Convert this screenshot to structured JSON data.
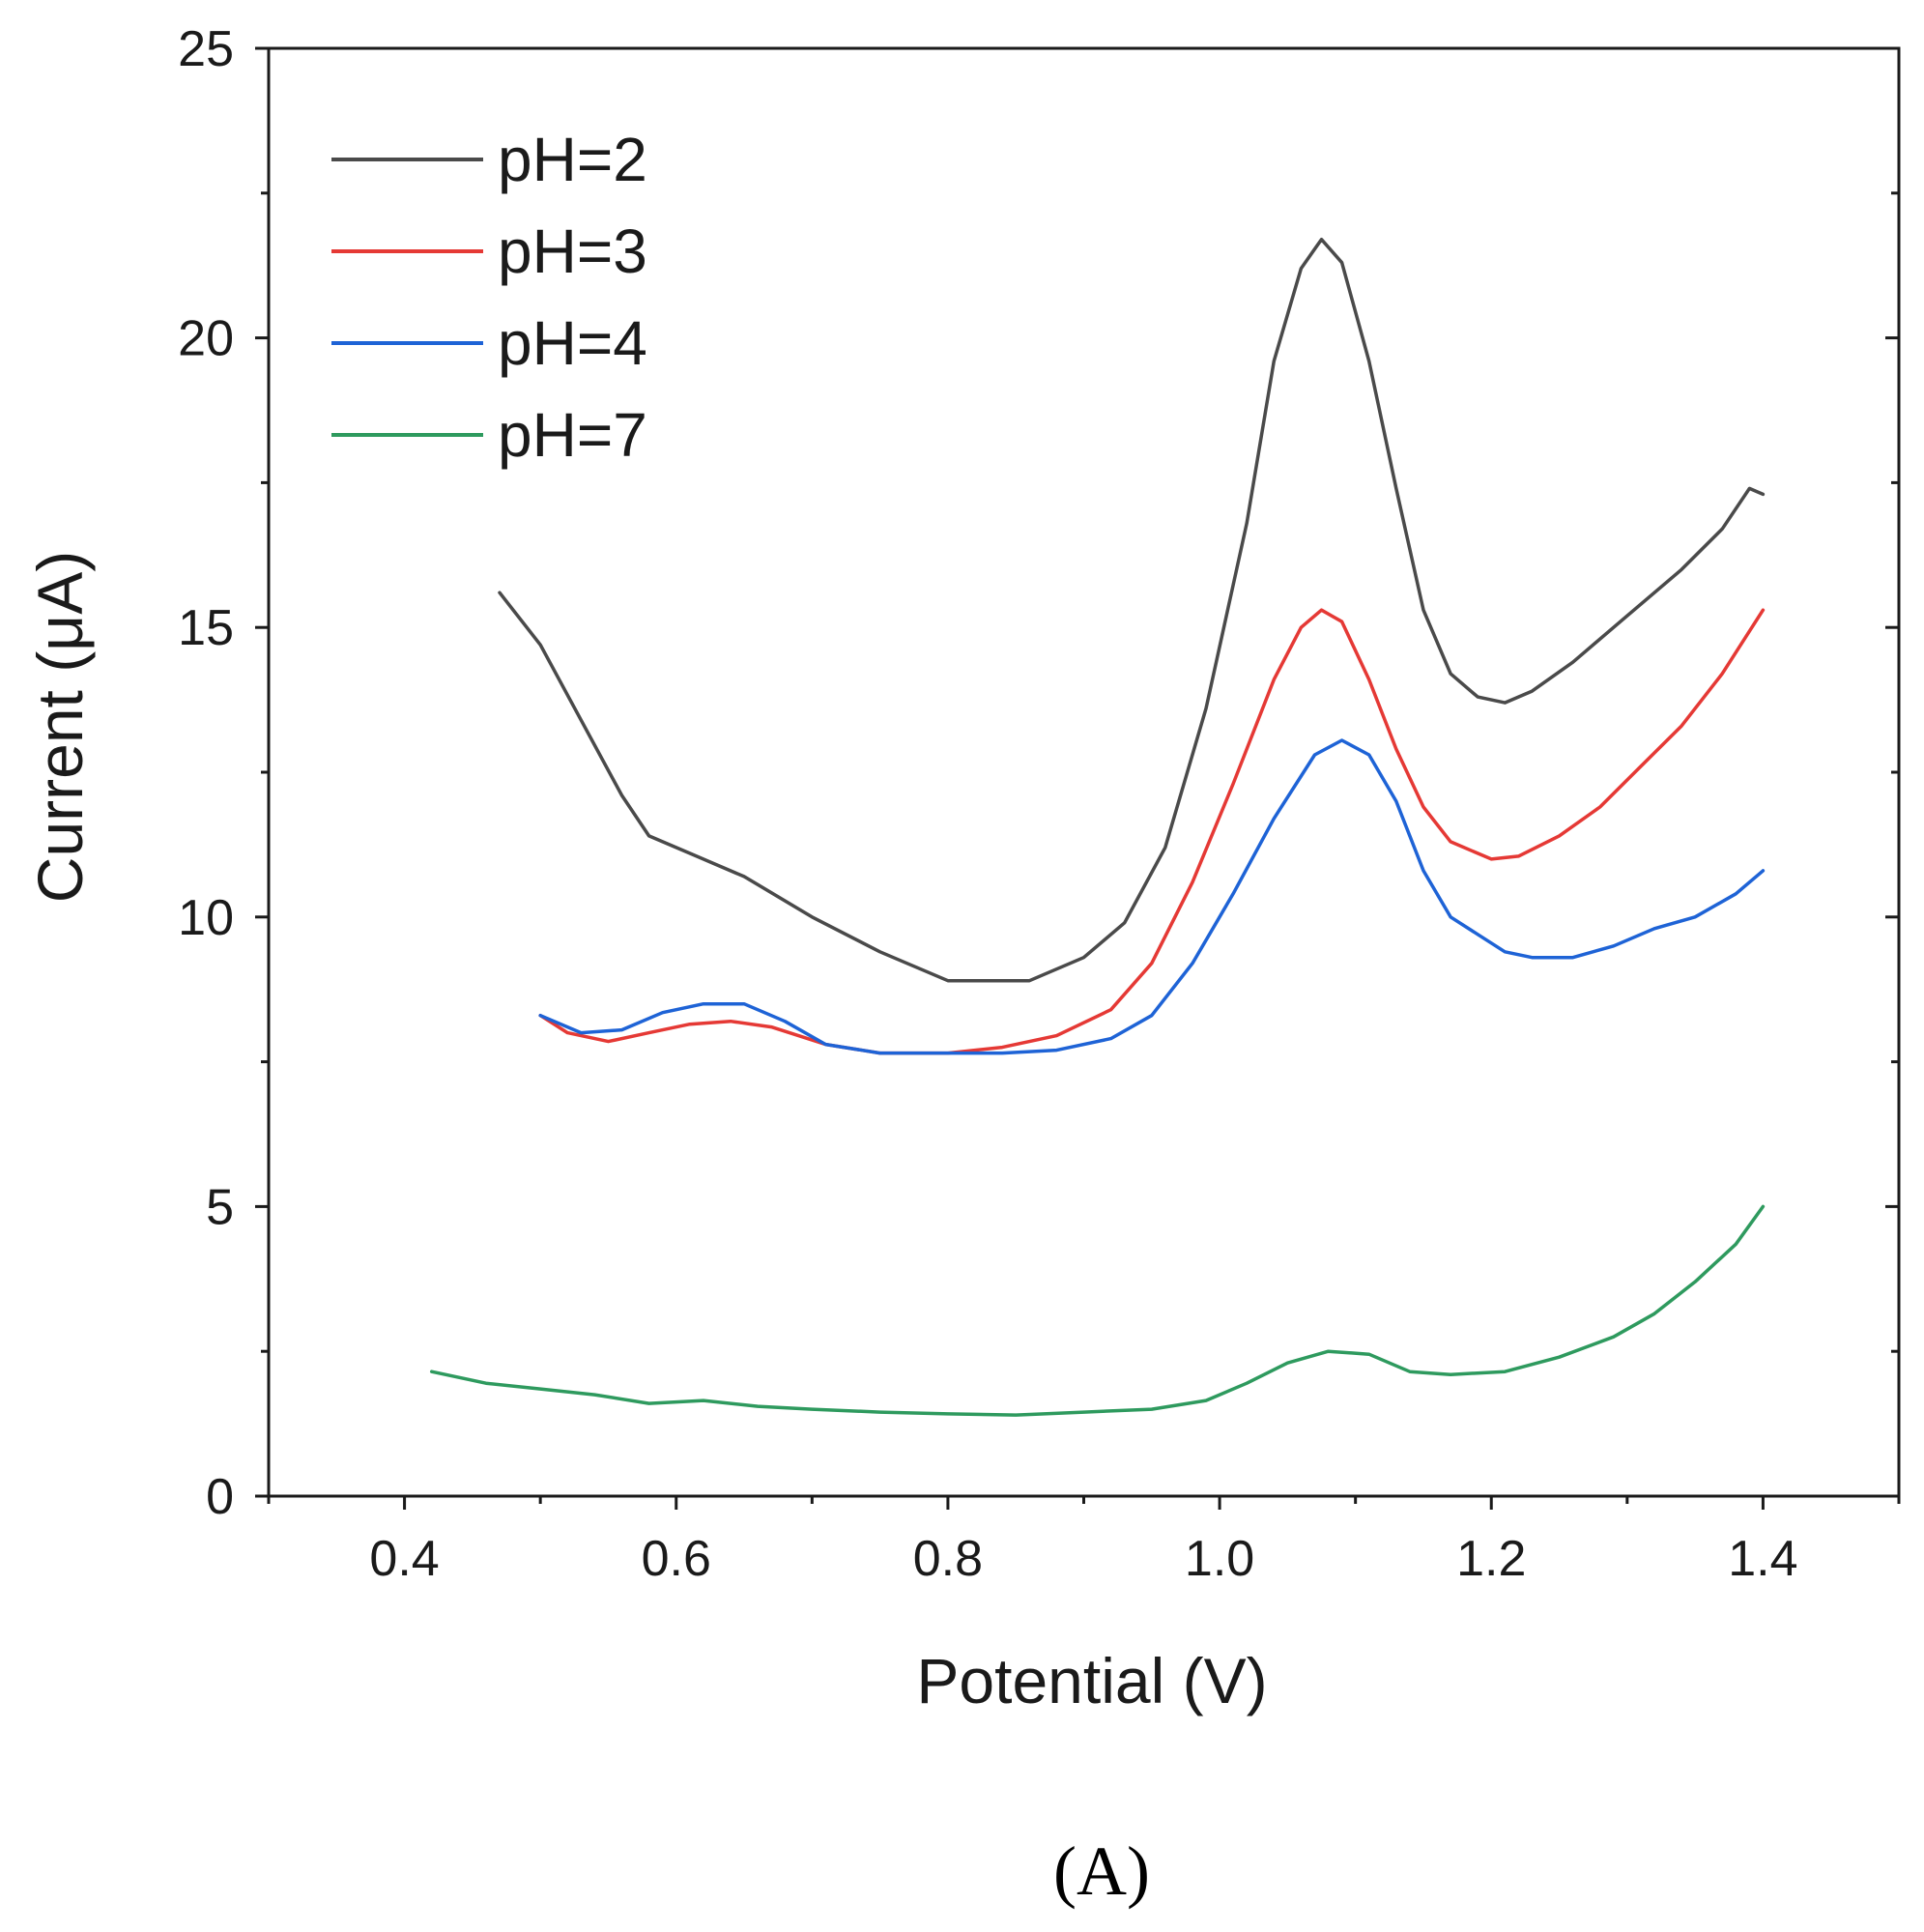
{
  "chart_data": {
    "type": "line",
    "title": "",
    "xlabel": "Potential (V)",
    "ylabel": "Current (μA)",
    "xlim": [
      0.3,
      1.5
    ],
    "ylim": [
      0,
      25
    ],
    "xticks": [
      0.4,
      0.6,
      0.8,
      1.0,
      1.2,
      1.4
    ],
    "xtick_labels": [
      "0.4",
      "0.6",
      "0.8",
      "1.0",
      "1.2",
      "1.4"
    ],
    "yticks": [
      0,
      5,
      10,
      15,
      20,
      25
    ],
    "ytick_labels": [
      "0",
      "5",
      "10",
      "15",
      "20",
      "25"
    ],
    "grid": false,
    "legend_position": "top-left",
    "panel_label": "(A)",
    "series": [
      {
        "name": "pH=2",
        "color": "#4a4a4a",
        "points": [
          [
            0.47,
            15.6
          ],
          [
            0.5,
            14.7
          ],
          [
            0.53,
            13.4
          ],
          [
            0.56,
            12.1
          ],
          [
            0.58,
            11.4
          ],
          [
            0.61,
            11.1
          ],
          [
            0.65,
            10.7
          ],
          [
            0.7,
            10.0
          ],
          [
            0.75,
            9.4
          ],
          [
            0.8,
            8.9
          ],
          [
            0.86,
            8.9
          ],
          [
            0.9,
            9.3
          ],
          [
            0.93,
            9.9
          ],
          [
            0.96,
            11.2
          ],
          [
            0.99,
            13.6
          ],
          [
            1.02,
            16.8
          ],
          [
            1.04,
            19.6
          ],
          [
            1.06,
            21.2
          ],
          [
            1.075,
            21.7
          ],
          [
            1.09,
            21.3
          ],
          [
            1.11,
            19.6
          ],
          [
            1.13,
            17.4
          ],
          [
            1.15,
            15.3
          ],
          [
            1.17,
            14.2
          ],
          [
            1.19,
            13.8
          ],
          [
            1.21,
            13.7
          ],
          [
            1.23,
            13.9
          ],
          [
            1.26,
            14.4
          ],
          [
            1.3,
            15.2
          ],
          [
            1.34,
            16.0
          ],
          [
            1.37,
            16.7
          ],
          [
            1.39,
            17.4
          ],
          [
            1.4,
            17.3
          ]
        ]
      },
      {
        "name": "pH=3",
        "color": "#e53935",
        "points": [
          [
            0.5,
            8.3
          ],
          [
            0.52,
            8.0
          ],
          [
            0.55,
            7.85
          ],
          [
            0.58,
            8.0
          ],
          [
            0.61,
            8.15
          ],
          [
            0.64,
            8.2
          ],
          [
            0.67,
            8.1
          ],
          [
            0.71,
            7.8
          ],
          [
            0.75,
            7.65
          ],
          [
            0.8,
            7.65
          ],
          [
            0.84,
            7.75
          ],
          [
            0.88,
            7.95
          ],
          [
            0.92,
            8.4
          ],
          [
            0.95,
            9.2
          ],
          [
            0.98,
            10.6
          ],
          [
            1.01,
            12.3
          ],
          [
            1.04,
            14.1
          ],
          [
            1.06,
            15.0
          ],
          [
            1.075,
            15.3
          ],
          [
            1.09,
            15.1
          ],
          [
            1.11,
            14.1
          ],
          [
            1.13,
            12.9
          ],
          [
            1.15,
            11.9
          ],
          [
            1.17,
            11.3
          ],
          [
            1.2,
            11.0
          ],
          [
            1.22,
            11.05
          ],
          [
            1.25,
            11.4
          ],
          [
            1.28,
            11.9
          ],
          [
            1.31,
            12.6
          ],
          [
            1.34,
            13.3
          ],
          [
            1.37,
            14.2
          ],
          [
            1.4,
            15.3
          ]
        ]
      },
      {
        "name": "pH=4",
        "color": "#1e63d6",
        "points": [
          [
            0.5,
            8.3
          ],
          [
            0.53,
            8.0
          ],
          [
            0.56,
            8.05
          ],
          [
            0.59,
            8.35
          ],
          [
            0.62,
            8.5
          ],
          [
            0.65,
            8.5
          ],
          [
            0.68,
            8.2
          ],
          [
            0.71,
            7.8
          ],
          [
            0.75,
            7.65
          ],
          [
            0.8,
            7.65
          ],
          [
            0.84,
            7.65
          ],
          [
            0.88,
            7.7
          ],
          [
            0.92,
            7.9
          ],
          [
            0.95,
            8.3
          ],
          [
            0.98,
            9.2
          ],
          [
            1.01,
            10.4
          ],
          [
            1.04,
            11.7
          ],
          [
            1.07,
            12.8
          ],
          [
            1.09,
            13.05
          ],
          [
            1.11,
            12.8
          ],
          [
            1.13,
            12.0
          ],
          [
            1.15,
            10.8
          ],
          [
            1.17,
            10.0
          ],
          [
            1.19,
            9.7
          ],
          [
            1.21,
            9.4
          ],
          [
            1.23,
            9.3
          ],
          [
            1.26,
            9.3
          ],
          [
            1.29,
            9.5
          ],
          [
            1.32,
            9.8
          ],
          [
            1.35,
            10.0
          ],
          [
            1.38,
            10.4
          ],
          [
            1.4,
            10.8
          ]
        ]
      },
      {
        "name": "pH=7",
        "color": "#2e9a5e",
        "points": [
          [
            0.42,
            2.15
          ],
          [
            0.46,
            1.95
          ],
          [
            0.5,
            1.85
          ],
          [
            0.54,
            1.75
          ],
          [
            0.58,
            1.6
          ],
          [
            0.62,
            1.65
          ],
          [
            0.66,
            1.55
          ],
          [
            0.7,
            1.5
          ],
          [
            0.75,
            1.45
          ],
          [
            0.8,
            1.42
          ],
          [
            0.85,
            1.4
          ],
          [
            0.9,
            1.45
          ],
          [
            0.95,
            1.5
          ],
          [
            0.99,
            1.65
          ],
          [
            1.02,
            1.95
          ],
          [
            1.05,
            2.3
          ],
          [
            1.08,
            2.5
          ],
          [
            1.11,
            2.45
          ],
          [
            1.14,
            2.15
          ],
          [
            1.17,
            2.1
          ],
          [
            1.21,
            2.15
          ],
          [
            1.25,
            2.4
          ],
          [
            1.29,
            2.75
          ],
          [
            1.32,
            3.15
          ],
          [
            1.35,
            3.7
          ],
          [
            1.38,
            4.35
          ],
          [
            1.4,
            5.0
          ]
        ]
      }
    ]
  }
}
